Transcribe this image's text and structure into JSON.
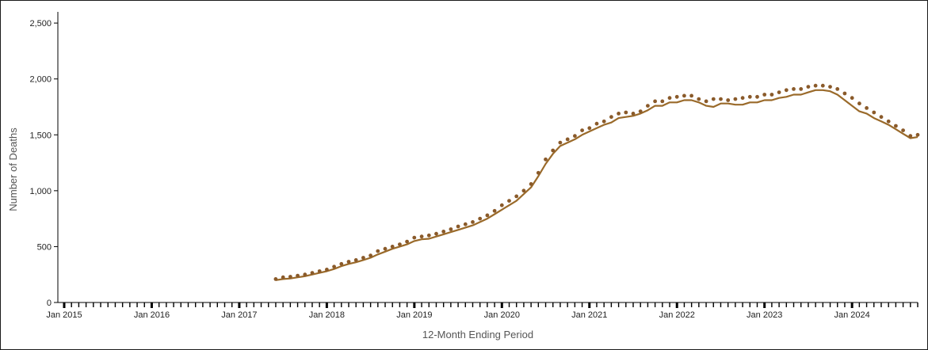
{
  "chart_data": {
    "type": "line",
    "title": "",
    "xlabel": "12-Month Ending Period",
    "ylabel": "Number of Deaths",
    "ylim": [
      0,
      2600
    ],
    "xlim": [
      "2015-01",
      "2024-10"
    ],
    "y_ticks": [
      {
        "value": 0,
        "label": "0"
      },
      {
        "value": 500,
        "label": "500"
      },
      {
        "value": 1000,
        "label": "1,000"
      },
      {
        "value": 1500,
        "label": "1,500"
      },
      {
        "value": 2000,
        "label": "2,000"
      },
      {
        "value": 2500,
        "label": "2,500"
      }
    ],
    "x_ticks": [
      {
        "value": "2015-01",
        "label": "Jan 2015"
      },
      {
        "value": "2016-01",
        "label": "Jan 2016"
      },
      {
        "value": "2017-01",
        "label": "Jan 2017"
      },
      {
        "value": "2018-01",
        "label": "Jan 2018"
      },
      {
        "value": "2019-01",
        "label": "Jan 2019"
      },
      {
        "value": "2020-01",
        "label": "Jan 2020"
      },
      {
        "value": "2021-01",
        "label": "Jan 2021"
      },
      {
        "value": "2022-01",
        "label": "Jan 2022"
      },
      {
        "value": "2023-01",
        "label": "Jan 2023"
      },
      {
        "value": "2024-01",
        "label": "Jan 2024"
      }
    ],
    "grid": false,
    "legend": "none",
    "colors": {
      "line": "#9a6a2a",
      "dots": "#8a5a2a",
      "axis": "#000000"
    },
    "series": [
      {
        "style": "solid",
        "x": [
          "2017-06",
          "2017-07",
          "2017-08",
          "2017-09",
          "2017-10",
          "2017-11",
          "2017-12",
          "2018-01",
          "2018-02",
          "2018-03",
          "2018-04",
          "2018-05",
          "2018-06",
          "2018-07",
          "2018-08",
          "2018-09",
          "2018-10",
          "2018-11",
          "2018-12",
          "2019-01",
          "2019-02",
          "2019-03",
          "2019-04",
          "2019-05",
          "2019-06",
          "2019-07",
          "2019-08",
          "2019-09",
          "2019-10",
          "2019-11",
          "2019-12",
          "2020-01",
          "2020-02",
          "2020-03",
          "2020-04",
          "2020-05",
          "2020-06",
          "2020-07",
          "2020-08",
          "2020-09",
          "2020-10",
          "2020-11",
          "2020-12",
          "2021-01",
          "2021-02",
          "2021-03",
          "2021-04",
          "2021-05",
          "2021-06",
          "2021-07",
          "2021-08",
          "2021-09",
          "2021-10",
          "2021-11",
          "2021-12",
          "2022-01",
          "2022-02",
          "2022-03",
          "2022-04",
          "2022-05",
          "2022-06",
          "2022-07",
          "2022-08",
          "2022-09",
          "2022-10",
          "2022-11",
          "2022-12",
          "2023-01",
          "2023-02",
          "2023-03",
          "2023-04",
          "2023-05",
          "2023-06",
          "2023-07",
          "2023-08",
          "2023-09",
          "2023-10",
          "2023-11",
          "2023-12",
          "2024-01",
          "2024-02",
          "2024-03",
          "2024-04",
          "2024-05",
          "2024-06",
          "2024-07",
          "2024-08",
          "2024-09",
          "2024-10"
        ],
        "y": [
          200,
          210,
          215,
          225,
          235,
          250,
          265,
          280,
          300,
          325,
          345,
          360,
          380,
          400,
          430,
          455,
          480,
          500,
          520,
          550,
          565,
          570,
          590,
          610,
          630,
          650,
          670,
          690,
          720,
          750,
          790,
          830,
          870,
          910,
          970,
          1030,
          1130,
          1240,
          1330,
          1400,
          1430,
          1460,
          1500,
          1530,
          1560,
          1590,
          1610,
          1650,
          1660,
          1670,
          1690,
          1720,
          1760,
          1760,
          1790,
          1790,
          1810,
          1810,
          1790,
          1760,
          1750,
          1780,
          1780,
          1770,
          1770,
          1790,
          1790,
          1810,
          1810,
          1830,
          1840,
          1860,
          1860,
          1880,
          1900,
          1900,
          1890,
          1860,
          1810,
          1760,
          1710,
          1690,
          1650,
          1620,
          1590,
          1550,
          1510,
          1470,
          1480
        ]
      },
      {
        "style": "dotted",
        "x": [
          "2017-06",
          "2017-07",
          "2017-08",
          "2017-09",
          "2017-10",
          "2017-11",
          "2017-12",
          "2018-01",
          "2018-02",
          "2018-03",
          "2018-04",
          "2018-05",
          "2018-06",
          "2018-07",
          "2018-08",
          "2018-09",
          "2018-10",
          "2018-11",
          "2018-12",
          "2019-01",
          "2019-02",
          "2019-03",
          "2019-04",
          "2019-05",
          "2019-06",
          "2019-07",
          "2019-08",
          "2019-09",
          "2019-10",
          "2019-11",
          "2019-12",
          "2020-01",
          "2020-02",
          "2020-03",
          "2020-04",
          "2020-05",
          "2020-06",
          "2020-07",
          "2020-08",
          "2020-09",
          "2020-10",
          "2020-11",
          "2020-12",
          "2021-01",
          "2021-02",
          "2021-03",
          "2021-04",
          "2021-05",
          "2021-06",
          "2021-07",
          "2021-08",
          "2021-09",
          "2021-10",
          "2021-11",
          "2021-12",
          "2022-01",
          "2022-02",
          "2022-03",
          "2022-04",
          "2022-05",
          "2022-06",
          "2022-07",
          "2022-08",
          "2022-09",
          "2022-10",
          "2022-11",
          "2022-12",
          "2023-01",
          "2023-02",
          "2023-03",
          "2023-04",
          "2023-05",
          "2023-06",
          "2023-07",
          "2023-08",
          "2023-09",
          "2023-10",
          "2023-11",
          "2023-12",
          "2024-01",
          "2024-02",
          "2024-03",
          "2024-04",
          "2024-05",
          "2024-06",
          "2024-07",
          "2024-08",
          "2024-09",
          "2024-10"
        ],
        "y": [
          210,
          225,
          230,
          240,
          250,
          265,
          280,
          295,
          320,
          345,
          365,
          380,
          400,
          420,
          460,
          480,
          500,
          520,
          545,
          580,
          590,
          600,
          615,
          635,
          655,
          680,
          700,
          720,
          750,
          780,
          820,
          870,
          910,
          950,
          1000,
          1060,
          1160,
          1280,
          1360,
          1430,
          1460,
          1490,
          1540,
          1560,
          1600,
          1620,
          1660,
          1690,
          1700,
          1690,
          1710,
          1760,
          1800,
          1800,
          1830,
          1840,
          1850,
          1850,
          1820,
          1800,
          1820,
          1820,
          1810,
          1820,
          1830,
          1840,
          1840,
          1860,
          1860,
          1880,
          1900,
          1910,
          1910,
          1930,
          1940,
          1940,
          1930,
          1910,
          1870,
          1830,
          1780,
          1740,
          1700,
          1660,
          1620,
          1580,
          1540,
          1490,
          1500
        ]
      }
    ]
  }
}
